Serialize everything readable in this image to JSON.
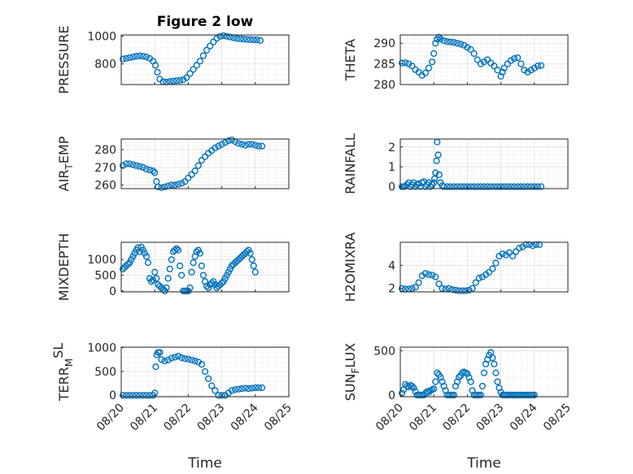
{
  "figure": {
    "title": "Figure 2 low",
    "accent_color": "#0072BD"
  },
  "chart_data": [
    {
      "type": "scatter",
      "title": "Figure 2 low",
      "ylabel": "PRESSURE",
      "xlim": [
        "08/20",
        "08/25"
      ],
      "ylim": [
        650,
        1010
      ],
      "yticks": [
        800,
        1000
      ],
      "xticks": [
        "08/20",
        "08/21",
        "08/22",
        "08/23",
        "08/24",
        "08/25"
      ],
      "x": [
        0.05,
        0.15,
        0.25,
        0.35,
        0.45,
        0.55,
        0.65,
        0.75,
        0.85,
        0.95,
        1.02,
        1.08,
        1.15,
        1.25,
        1.35,
        1.45,
        1.55,
        1.65,
        1.75,
        1.85,
        1.95,
        2.05,
        2.15,
        2.25,
        2.35,
        2.45,
        2.55,
        2.65,
        2.75,
        2.85,
        2.95,
        3.05,
        3.15,
        3.25,
        3.35,
        3.45,
        3.55,
        3.65,
        3.75,
        3.85,
        3.95,
        4.05,
        4.15
      ],
      "y": [
        835,
        840,
        845,
        850,
        855,
        858,
        855,
        850,
        840,
        820,
        790,
        740,
        690,
        670,
        668,
        672,
        675,
        678,
        680,
        685,
        700,
        730,
        760,
        790,
        820,
        860,
        900,
        930,
        960,
        985,
        1000,
        1005,
        1000,
        995,
        990,
        985,
        982,
        980,
        978,
        976,
        975,
        974,
        970
      ]
    },
    {
      "type": "scatter",
      "ylabel": "THETA",
      "xlim": [
        "08/20",
        "08/25"
      ],
      "ylim": [
        280,
        292
      ],
      "yticks": [
        280,
        285,
        290
      ],
      "xticks": [
        "08/20",
        "08/21",
        "08/22",
        "08/23",
        "08/24",
        "08/25"
      ],
      "x": [
        0.05,
        0.15,
        0.25,
        0.35,
        0.45,
        0.55,
        0.65,
        0.75,
        0.85,
        0.95,
        1.0,
        1.05,
        1.1,
        1.15,
        1.2,
        1.3,
        1.4,
        1.5,
        1.6,
        1.7,
        1.8,
        1.9,
        2.0,
        2.1,
        2.2,
        2.3,
        2.4,
        2.5,
        2.6,
        2.7,
        2.8,
        2.9,
        3.0,
        3.05,
        3.1,
        3.2,
        3.3,
        3.4,
        3.5,
        3.6,
        3.7,
        3.8,
        3.9,
        4.0,
        4.1,
        4.2
      ],
      "y": [
        285.2,
        285.3,
        285.0,
        284.5,
        283.6,
        283.0,
        282.2,
        282.8,
        284.0,
        285.5,
        287.5,
        290.0,
        291.0,
        291.5,
        291.0,
        290.6,
        290.4,
        290.3,
        290.2,
        290.0,
        289.8,
        289.5,
        289.0,
        288.5,
        287.5,
        286.0,
        285.0,
        285.5,
        286.0,
        285.2,
        284.5,
        283.5,
        282.0,
        283.0,
        284.0,
        285.0,
        285.8,
        286.3,
        286.5,
        285.0,
        283.5,
        283.0,
        283.5,
        284.0,
        284.5,
        284.6
      ]
    },
    {
      "type": "scatter",
      "ylabel": "AIR_TEMP",
      "xlim": [
        "08/20",
        "08/25"
      ],
      "ylim": [
        258,
        286
      ],
      "yticks": [
        260,
        270,
        280
      ],
      "xticks": [
        "08/20",
        "08/21",
        "08/22",
        "08/23",
        "08/24",
        "08/25"
      ],
      "x": [
        0.05,
        0.15,
        0.25,
        0.35,
        0.45,
        0.55,
        0.65,
        0.75,
        0.85,
        0.95,
        1.0,
        1.05,
        1.1,
        1.2,
        1.3,
        1.4,
        1.5,
        1.6,
        1.7,
        1.8,
        1.9,
        2.0,
        2.1,
        2.2,
        2.3,
        2.4,
        2.5,
        2.6,
        2.7,
        2.8,
        2.9,
        3.0,
        3.1,
        3.2,
        3.3,
        3.4,
        3.5,
        3.6,
        3.7,
        3.8,
        3.9,
        4.0,
        4.1,
        4.2
      ],
      "y": [
        271,
        272,
        272,
        271.5,
        271,
        270.5,
        270,
        269,
        268.5,
        268,
        267,
        262,
        259,
        258.5,
        259,
        259.5,
        260,
        260,
        260.5,
        261,
        262,
        264,
        266,
        268,
        271,
        274,
        276,
        278,
        279.5,
        281,
        282,
        283,
        284,
        285,
        285.5,
        284.5,
        283.5,
        283,
        282.5,
        283,
        283,
        282.5,
        282,
        282
      ]
    },
    {
      "type": "scatter",
      "ylabel": "RAINFALL",
      "xlim": [
        "08/20",
        "08/25"
      ],
      "ylim": [
        -0.1,
        2.4
      ],
      "yticks": [
        0,
        1,
        2
      ],
      "xticks": [
        "08/20",
        "08/21",
        "08/22",
        "08/23",
        "08/24",
        "08/25"
      ],
      "x": [
        0.05,
        0.1,
        0.15,
        0.2,
        0.25,
        0.3,
        0.35,
        0.4,
        0.45,
        0.5,
        0.55,
        0.6,
        0.65,
        0.7,
        0.75,
        0.8,
        0.85,
        0.9,
        0.95,
        1.0,
        1.02,
        1.05,
        1.08,
        1.1,
        1.13,
        1.16,
        1.2,
        1.25,
        1.3,
        1.4,
        1.5,
        1.6,
        1.7,
        1.8,
        1.9,
        2.0,
        2.1,
        2.2,
        2.3,
        2.4,
        2.5,
        2.6,
        2.7,
        2.8,
        2.9,
        3.0,
        3.1,
        3.2,
        3.3,
        3.4,
        3.5,
        3.6,
        3.7,
        3.8,
        3.9,
        4.0,
        4.1,
        4.2
      ],
      "y": [
        0,
        0,
        0.02,
        0.1,
        0.2,
        0,
        0.1,
        0.2,
        0,
        0.1,
        0.15,
        0,
        0.2,
        0.25,
        0,
        0.1,
        0.2,
        0,
        0.1,
        0.2,
        0.4,
        0.7,
        1.3,
        2.25,
        1.6,
        0.6,
        0.2,
        0.05,
        0,
        0,
        0,
        0,
        0,
        0,
        0,
        0,
        0,
        0,
        0,
        0,
        0,
        0,
        0,
        0,
        0,
        0,
        0,
        0,
        0,
        0,
        0,
        0,
        0,
        0,
        0,
        0,
        0,
        0
      ]
    },
    {
      "type": "scatter",
      "ylabel": "MIXDEPTH",
      "xlim": [
        "08/20",
        "08/25"
      ],
      "ylim": [
        -30,
        1550
      ],
      "yticks": [
        0,
        500,
        1000
      ],
      "xticks": [
        "08/20",
        "08/21",
        "08/22",
        "08/23",
        "08/24",
        "08/25"
      ],
      "x": [
        0.05,
        0.1,
        0.15,
        0.2,
        0.25,
        0.3,
        0.35,
        0.4,
        0.45,
        0.5,
        0.55,
        0.6,
        0.65,
        0.7,
        0.75,
        0.8,
        0.85,
        0.9,
        0.95,
        1.0,
        1.05,
        1.1,
        1.15,
        1.2,
        1.25,
        1.3,
        1.35,
        1.4,
        1.45,
        1.5,
        1.55,
        1.6,
        1.65,
        1.7,
        1.75,
        1.8,
        1.85,
        1.9,
        1.95,
        2.0,
        2.05,
        2.1,
        2.15,
        2.2,
        2.25,
        2.3,
        2.35,
        2.4,
        2.45,
        2.5,
        2.55,
        2.6,
        2.65,
        2.7,
        2.75,
        2.8,
        2.85,
        2.9,
        2.95,
        3.0,
        3.05,
        3.1,
        3.15,
        3.2,
        3.25,
        3.3,
        3.35,
        3.4,
        3.45,
        3.5,
        3.55,
        3.6,
        3.65,
        3.7,
        3.75,
        3.8,
        3.85,
        3.9,
        3.95,
        4.0
      ],
      "y": [
        700,
        750,
        800,
        850,
        900,
        1000,
        1100,
        1200,
        1300,
        1380,
        1250,
        1400,
        1300,
        1200,
        1100,
        900,
        400,
        300,
        350,
        600,
        400,
        200,
        150,
        100,
        50,
        0,
        100,
        400,
        700,
        1000,
        1250,
        1300,
        1350,
        1300,
        800,
        500,
        0,
        0,
        0,
        0,
        100,
        600,
        900,
        1100,
        1250,
        1300,
        1200,
        800,
        500,
        300,
        150,
        100,
        200,
        250,
        300,
        200,
        100,
        150,
        200,
        250,
        300,
        400,
        500,
        600,
        700,
        800,
        850,
        900,
        950,
        1000,
        1050,
        1100,
        1150,
        1200,
        1250,
        1300,
        1200,
        1000,
        800,
        600
      ]
    },
    {
      "type": "scatter",
      "ylabel": "H2OMIXRA",
      "xlim": [
        "08/20",
        "08/25"
      ],
      "ylim": [
        1.7,
        6.0
      ],
      "yticks": [
        2,
        4
      ],
      "xticks": [
        "08/20",
        "08/21",
        "08/22",
        "08/23",
        "08/24",
        "08/25"
      ],
      "x": [
        0.05,
        0.15,
        0.25,
        0.35,
        0.45,
        0.55,
        0.65,
        0.75,
        0.85,
        0.95,
        1.05,
        1.15,
        1.25,
        1.35,
        1.45,
        1.55,
        1.65,
        1.75,
        1.85,
        1.95,
        2.05,
        2.15,
        2.25,
        2.35,
        2.45,
        2.55,
        2.65,
        2.75,
        2.85,
        2.95,
        3.05,
        3.15,
        3.25,
        3.35,
        3.45,
        3.55,
        3.65,
        3.75,
        3.85,
        3.95,
        4.05,
        4.15
      ],
      "y": [
        2.0,
        1.95,
        1.95,
        2.0,
        2.1,
        2.5,
        3.1,
        3.3,
        3.2,
        3.15,
        3.0,
        2.4,
        2.0,
        1.95,
        2.0,
        1.9,
        1.85,
        1.8,
        1.8,
        1.8,
        1.85,
        2.0,
        2.5,
        2.9,
        3.0,
        3.2,
        3.4,
        3.7,
        4.2,
        4.8,
        5.0,
        4.9,
        5.1,
        4.8,
        5.2,
        5.5,
        5.6,
        5.8,
        5.8,
        5.7,
        5.8,
        5.8
      ]
    },
    {
      "type": "scatter",
      "ylabel": "TERR_MSL",
      "xlim": [
        "08/20",
        "08/25"
      ],
      "ylim": [
        -30,
        1010
      ],
      "yticks": [
        0,
        500,
        1000
      ],
      "xticks": [
        "08/20",
        "08/21",
        "08/22",
        "08/23",
        "08/24",
        "08/25"
      ],
      "x": [
        0.05,
        0.15,
        0.25,
        0.35,
        0.45,
        0.55,
        0.65,
        0.75,
        0.85,
        0.95,
        1.0,
        1.03,
        1.06,
        1.1,
        1.15,
        1.2,
        1.3,
        1.4,
        1.5,
        1.6,
        1.7,
        1.8,
        1.9,
        2.0,
        2.1,
        2.2,
        2.3,
        2.4,
        2.5,
        2.6,
        2.7,
        2.8,
        2.9,
        3.0,
        3.1,
        3.2,
        3.3,
        3.4,
        3.5,
        3.6,
        3.7,
        3.8,
        3.9,
        4.0,
        4.1,
        4.2
      ],
      "y": [
        0,
        0,
        0,
        0,
        0,
        0,
        0,
        0,
        0,
        0,
        50,
        600,
        850,
        900,
        900,
        750,
        720,
        740,
        780,
        800,
        820,
        790,
        770,
        760,
        740,
        720,
        700,
        650,
        500,
        350,
        200,
        100,
        0,
        0,
        0,
        50,
        100,
        120,
        130,
        140,
        150,
        140,
        150,
        160,
        160,
        160
      ]
    },
    {
      "type": "scatter",
      "ylabel": "SUN_FLUX",
      "xlim": [
        "08/20",
        "08/25"
      ],
      "ylim": [
        -20,
        540
      ],
      "yticks": [
        0,
        500
      ],
      "xticks": [
        "08/20",
        "08/21",
        "08/22",
        "08/23",
        "08/24",
        "08/25"
      ],
      "x": [
        0.05,
        0.1,
        0.15,
        0.2,
        0.25,
        0.3,
        0.35,
        0.4,
        0.45,
        0.5,
        0.55,
        0.6,
        0.65,
        0.7,
        0.75,
        0.8,
        0.85,
        0.9,
        0.95,
        1.0,
        1.05,
        1.1,
        1.15,
        1.2,
        1.25,
        1.3,
        1.35,
        1.4,
        1.45,
        1.5,
        1.55,
        1.6,
        1.65,
        1.7,
        1.75,
        1.8,
        1.85,
        1.9,
        1.95,
        2.0,
        2.05,
        2.1,
        2.15,
        2.2,
        2.25,
        2.3,
        2.35,
        2.4,
        2.45,
        2.5,
        2.55,
        2.6,
        2.65,
        2.7,
        2.75,
        2.8,
        2.85,
        2.9,
        2.95,
        3.0,
        3.05,
        3.1,
        3.15,
        3.2,
        3.25,
        3.3,
        3.35,
        3.4,
        3.45,
        3.5,
        3.55,
        3.6,
        3.65,
        3.7,
        3.75,
        3.8,
        3.85,
        3.9,
        3.95,
        4.0
      ],
      "y": [
        20,
        60,
        120,
        100,
        90,
        110,
        100,
        80,
        40,
        0,
        0,
        0,
        0,
        0,
        20,
        40,
        30,
        50,
        60,
        70,
        150,
        250,
        230,
        200,
        150,
        100,
        50,
        0,
        0,
        0,
        0,
        0,
        100,
        150,
        200,
        220,
        250,
        260,
        250,
        240,
        200,
        150,
        50,
        0,
        0,
        0,
        0,
        0,
        100,
        250,
        350,
        400,
        450,
        480,
        420,
        350,
        250,
        150,
        80,
        30,
        0,
        0,
        0,
        0,
        0,
        0,
        0,
        0,
        0,
        0,
        0,
        0,
        0,
        0,
        0,
        0,
        0,
        0,
        0,
        0
      ]
    }
  ],
  "axis_labels": {
    "ylabels": [
      {
        "main": "PRESSURE",
        "sub": "",
        "tail": "",
        "sup": ""
      },
      {
        "main": "THETA",
        "sub": "",
        "tail": "",
        "sup": ""
      },
      {
        "main": "AIR",
        "sub": "T",
        "tail": "EMP",
        "sup": ""
      },
      {
        "main": "RAINFALL",
        "sub": "",
        "tail": "",
        "sup": ""
      },
      {
        "main": "MIXDEPTH",
        "sub": "",
        "tail": "",
        "sup": ""
      },
      {
        "main": "H2OMIXRA",
        "sub": "",
        "tail": "",
        "sup": ""
      },
      {
        "main": "TERR",
        "sub": "M",
        "tail": "",
        "sup": "SL"
      },
      {
        "main": "SUN",
        "sub": "F",
        "tail": "LUX",
        "sup": ""
      }
    ],
    "xlabel_left": "Time",
    "xlabel_right": "Time"
  }
}
